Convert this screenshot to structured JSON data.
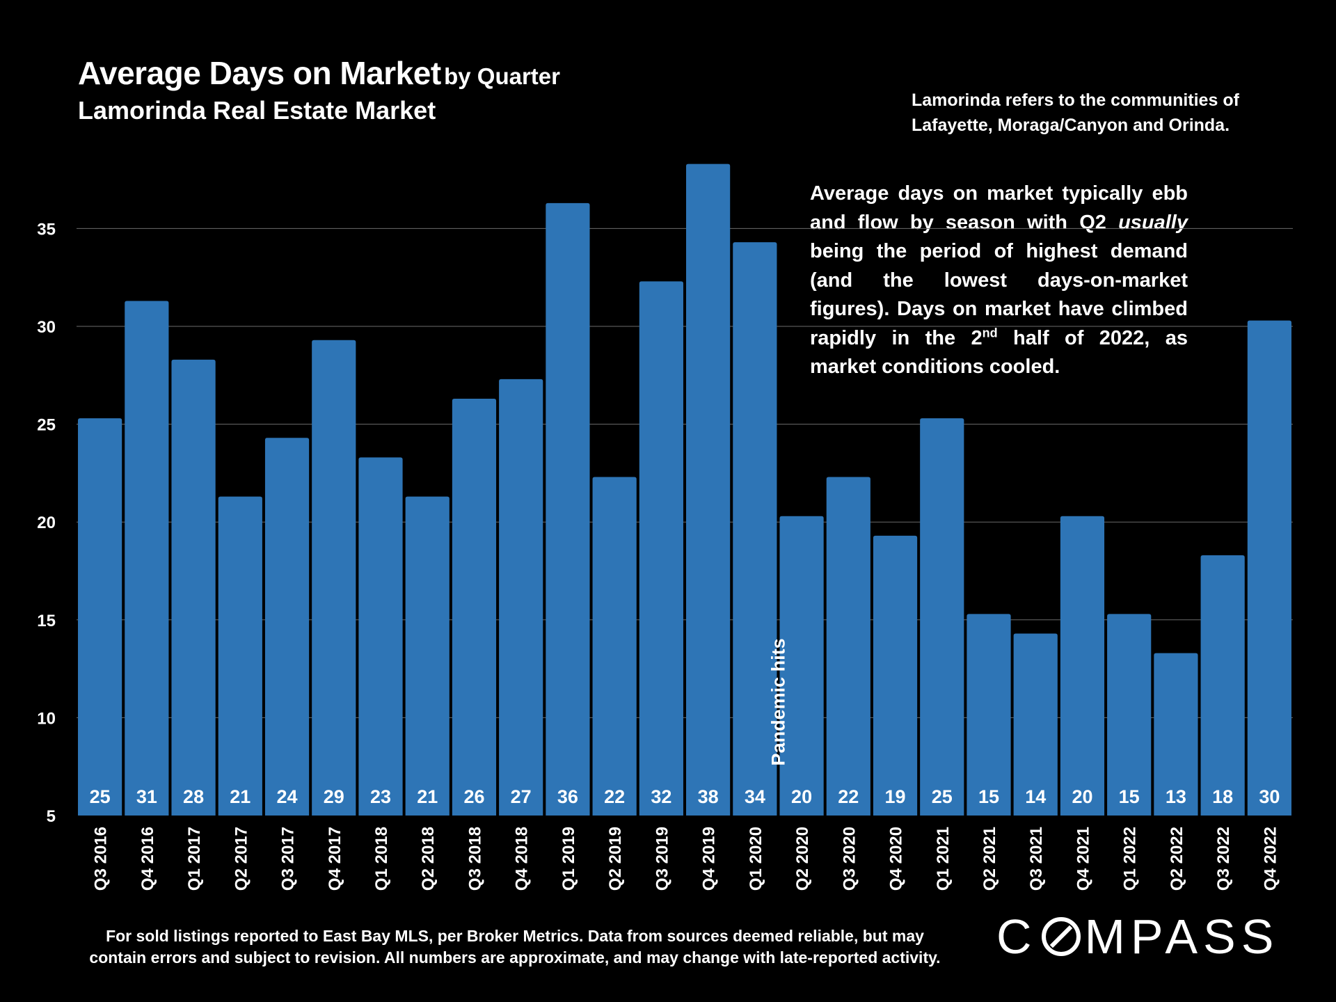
{
  "chart_data": {
    "type": "bar",
    "title": "Average Days on Market",
    "title_suffix": "by Quarter",
    "subtitle": "Lamorinda Real Estate Market",
    "xlabel": "",
    "ylabel": "",
    "ylim": [
      5,
      38.5
    ],
    "yticks": [
      5,
      10,
      15,
      20,
      25,
      30,
      35
    ],
    "grid": true,
    "bar_color": "#2E75B6",
    "categories": [
      "Q3 2016",
      "Q4 2016",
      "Q1 2017",
      "Q2 2017",
      "Q3 2017",
      "Q4 2017",
      "Q1 2018",
      "Q2 2018",
      "Q3 2018",
      "Q4 2018",
      "Q1 2019",
      "Q2 2019",
      "Q3 2019",
      "Q4 2019",
      "Q1 2020",
      "Q2 2020",
      "Q3 2020",
      "Q4 2020",
      "Q1 2021",
      "Q2 2021",
      "Q3 2021",
      "Q4 2021",
      "Q1 2022",
      "Q2 2022",
      "Q3 2022",
      "Q4 2022"
    ],
    "values": [
      25.3,
      31.3,
      28.3,
      21.3,
      24.3,
      29.3,
      23.3,
      21.3,
      26.3,
      27.3,
      36.3,
      22.3,
      32.3,
      38.3,
      34.3,
      20.3,
      22.3,
      19.3,
      25.3,
      15.3,
      14.3,
      20.3,
      15.3,
      13.3,
      18.3,
      30.3
    ],
    "data_labels": [
      "25",
      "31",
      "28",
      "21",
      "24",
      "29",
      "23",
      "21",
      "26",
      "27",
      "36",
      "22",
      "32",
      "38",
      "34",
      "20",
      "22",
      "19",
      "25",
      "15",
      "14",
      "20",
      "15",
      "13",
      "18",
      "30"
    ],
    "event_marker": {
      "after_category": "Q1 2020",
      "label": "Pandemic hits"
    }
  },
  "note_top": "Lamorinda refers to the communities of Lafayette, Moraga/Canyon and Orinda.",
  "annotation": {
    "part1": "Average days on market typically ebb and flow by season with Q2 ",
    "emphasis": "usually",
    "part2": " being the period of highest demand (and the lowest days-on-market figures). Days on market have climbed rapidly in the 2",
    "sup": "nd",
    "part3": " half of 2022, as market conditions cooled."
  },
  "footer": {
    "line1": "For sold listings reported to East Bay MLS, per Broker Metrics. Data from sources deemed reliable, but may",
    "line2": "contain errors and subject to revision. All numbers are approximate, and may change with late-reported activity."
  },
  "logo": {
    "before": "C",
    "after": "MPASS"
  }
}
